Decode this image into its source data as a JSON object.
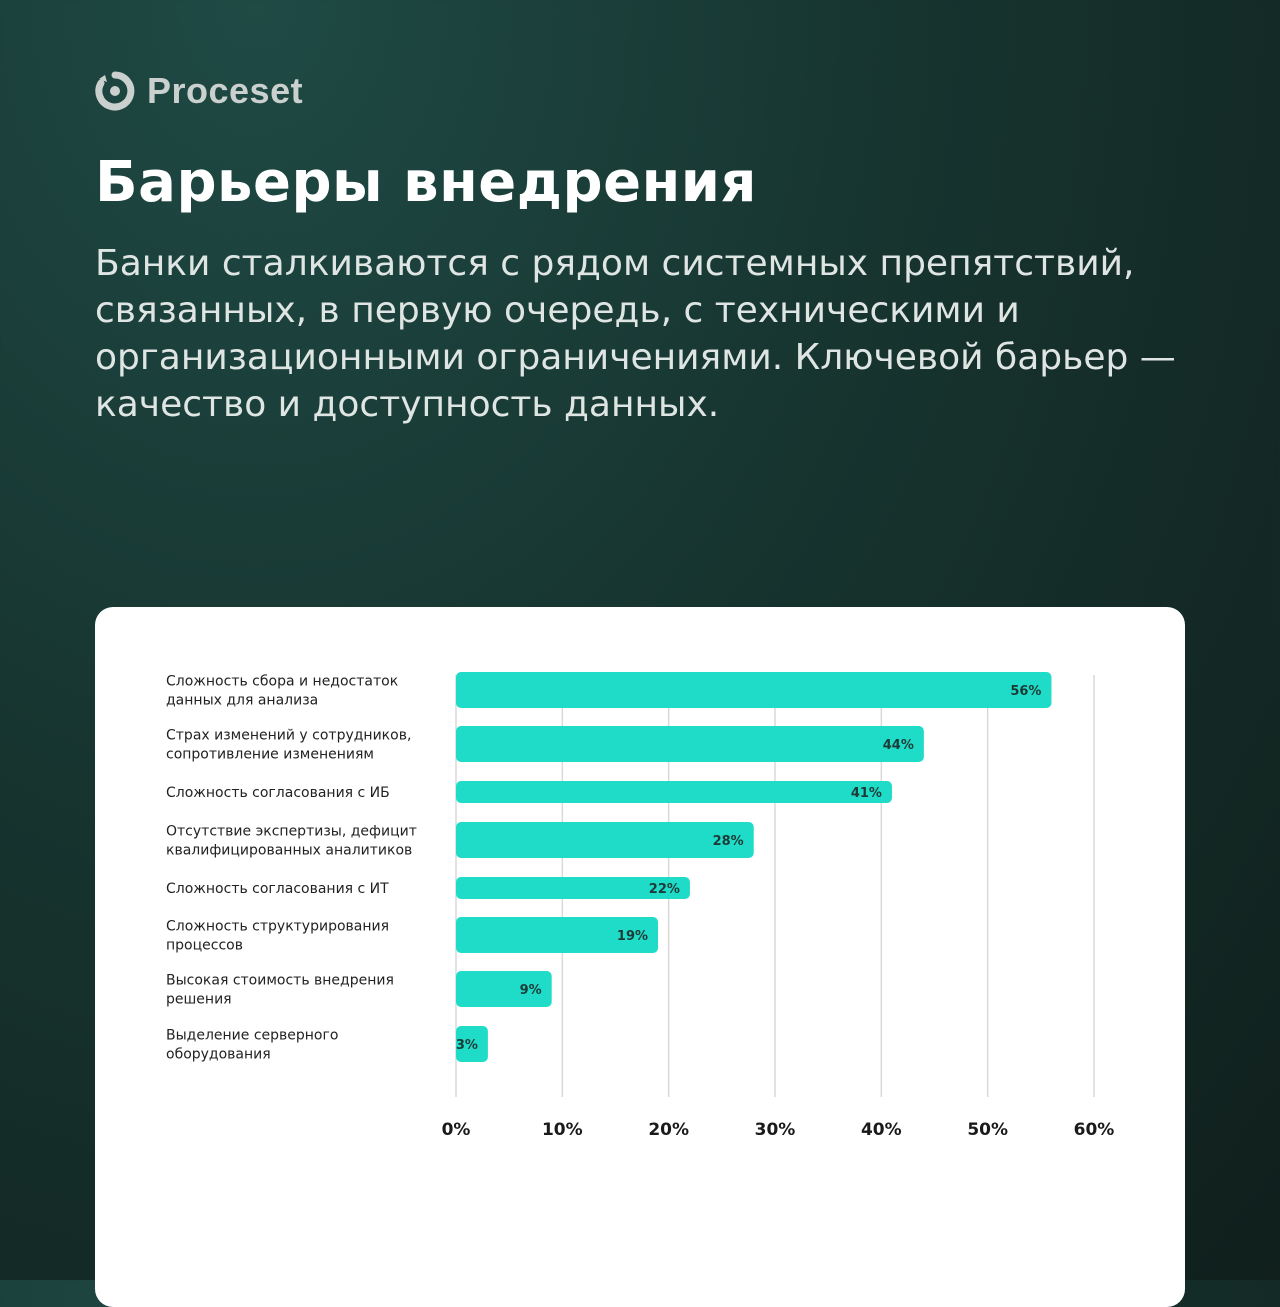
{
  "brand": {
    "name": "Proceset",
    "icon": "proceset-logo-icon"
  },
  "header": {
    "title": "Барьеры внедрения",
    "subtitle": "Банки сталкиваются с рядом системных препятствий, связанных, в первую очередь, с техническими и организационными ограничениями. Ключевой барьер — качество и доступность данных."
  },
  "colors": {
    "bar": "#1fdcc8",
    "background": "#17342f",
    "card": "#ffffff",
    "grid": "#d9d9d9"
  },
  "chart_data": {
    "type": "bar",
    "orientation": "horizontal",
    "categories": [
      [
        "Сложность сбора и недостаток",
        "данных для анализа"
      ],
      [
        "Страх изменений у сотрудников,",
        "сопротивление изменениям"
      ],
      [
        "Сложность согласования с ИБ"
      ],
      [
        "Отсутствие экспертизы, дефицит",
        "квалифицированных аналитиков"
      ],
      [
        "Сложность согласования с ИТ"
      ],
      [
        "Сложность структурирования",
        "процессов"
      ],
      [
        "Высокая стоимость внедрения",
        "решения"
      ],
      [
        "Выделение серверного",
        "оборудования"
      ]
    ],
    "values": [
      56,
      44,
      41,
      28,
      22,
      19,
      9,
      3
    ],
    "value_labels": [
      "56%",
      "44%",
      "41%",
      "28%",
      "22%",
      "19%",
      "9%",
      "3%"
    ],
    "xlim": [
      0,
      60
    ],
    "xticks": [
      0,
      10,
      20,
      30,
      40,
      50,
      60
    ],
    "xtick_labels": [
      "0%",
      "10%",
      "20%",
      "30%",
      "40%",
      "50%",
      "60%"
    ],
    "grid": true,
    "legend": "none"
  }
}
